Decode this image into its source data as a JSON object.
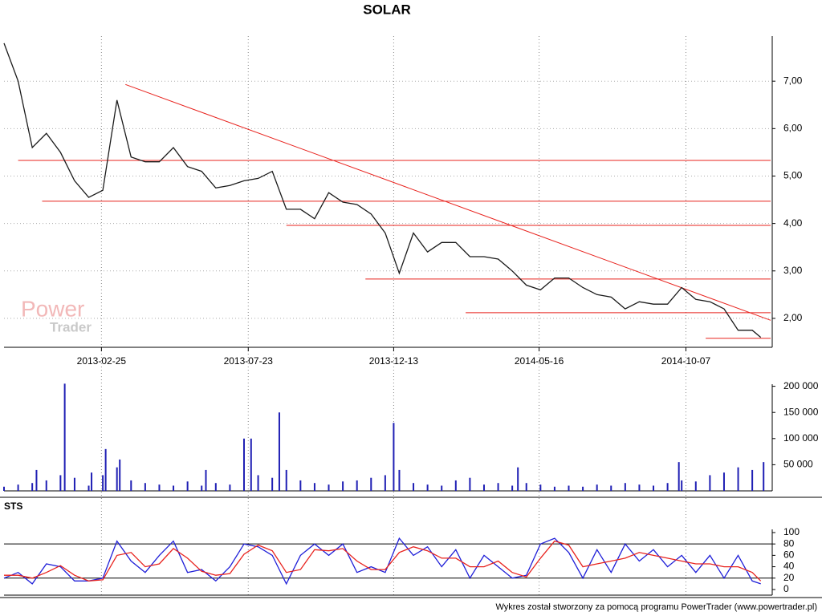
{
  "chart_data": [
    {
      "type": "line",
      "title": "SOLAR",
      "x": [
        0,
        10,
        20,
        30,
        40,
        50,
        60,
        70,
        80,
        90,
        100,
        110,
        120,
        130,
        140,
        150,
        160,
        170,
        180,
        190,
        200,
        210,
        220,
        230,
        240,
        250,
        260,
        270,
        280,
        290,
        300,
        310,
        320,
        330,
        340,
        350,
        360,
        370,
        380,
        390,
        400,
        410,
        420,
        430,
        440,
        450,
        460,
        470,
        480,
        490,
        500,
        510,
        520,
        530,
        536
      ],
      "series": [
        {
          "color": "#1a1a1a",
          "values": [
            7.8,
            7.0,
            5.6,
            5.9,
            5.5,
            4.9,
            4.55,
            4.7,
            6.6,
            5.4,
            5.3,
            5.3,
            5.6,
            5.2,
            5.1,
            4.75,
            4.8,
            4.9,
            4.95,
            5.1,
            4.3,
            4.3,
            4.1,
            4.65,
            4.45,
            4.4,
            4.2,
            3.8,
            2.95,
            3.8,
            3.4,
            3.6,
            3.6,
            3.3,
            3.3,
            3.25,
            3.0,
            2.7,
            2.6,
            2.85,
            2.85,
            2.65,
            2.5,
            2.45,
            2.2,
            2.35,
            2.3,
            2.3,
            2.65,
            2.4,
            2.35,
            2.2,
            1.75,
            1.75,
            1.6
          ]
        }
      ],
      "xlim": [
        0,
        543
      ],
      "xticks": [
        {
          "value": 69,
          "label": "2013-02-25"
        },
        {
          "value": 173,
          "label": "2013-07-23"
        },
        {
          "value": 276,
          "label": "2013-12-13"
        },
        {
          "value": 379,
          "label": "2014-05-16"
        },
        {
          "value": 483,
          "label": "2014-10-07"
        }
      ],
      "ylim": [
        1.39,
        7.95
      ],
      "yticks": [
        {
          "value": 2,
          "label": "2,00"
        },
        {
          "value": 3,
          "label": "3,00"
        },
        {
          "value": 4,
          "label": "4,00"
        },
        {
          "value": 5,
          "label": "5,00"
        },
        {
          "value": 6,
          "label": "6,00"
        },
        {
          "value": 7,
          "label": "7,00"
        }
      ],
      "hlines": [
        {
          "from": 10,
          "value": 5.33
        },
        {
          "from": 27,
          "value": 4.47
        },
        {
          "from": 200,
          "value": 3.96
        },
        {
          "from": 256,
          "value": 2.83
        },
        {
          "from": 327,
          "value": 2.12
        },
        {
          "from": 497,
          "value": 1.58
        }
      ],
      "trendline": {
        "x": [
          86,
          543
        ],
        "y": [
          6.93,
          1.96
        ]
      },
      "line_color": "#e8231e",
      "grid": true
    },
    {
      "type": "bar",
      "x": [
        0,
        10,
        20,
        23,
        30,
        40,
        43,
        50,
        60,
        62,
        70,
        72,
        80,
        82,
        90,
        100,
        110,
        120,
        130,
        140,
        143,
        150,
        160,
        170,
        175,
        180,
        190,
        195,
        200,
        210,
        220,
        230,
        240,
        250,
        260,
        270,
        276,
        280,
        290,
        300,
        310,
        320,
        330,
        340,
        350,
        360,
        364,
        370,
        380,
        390,
        400,
        410,
        420,
        430,
        440,
        450,
        460,
        470,
        478,
        480,
        490,
        500,
        510,
        520,
        530,
        538
      ],
      "values": [
        8000,
        12000,
        15000,
        40000,
        20000,
        30000,
        205000,
        25000,
        10000,
        35000,
        30000,
        80000,
        45000,
        60000,
        20000,
        15000,
        12000,
        10000,
        18000,
        10000,
        40000,
        15000,
        12000,
        100000,
        100000,
        30000,
        25000,
        150000,
        40000,
        20000,
        15000,
        12000,
        18000,
        20000,
        25000,
        30000,
        130000,
        40000,
        15000,
        12000,
        10000,
        20000,
        25000,
        12000,
        15000,
        10000,
        45000,
        15000,
        12000,
        8000,
        10000,
        8000,
        12000,
        10000,
        15000,
        12000,
        10000,
        15000,
        55000,
        20000,
        18000,
        30000,
        35000,
        45000,
        40000,
        55000
      ],
      "color": "#1f1fb4",
      "xlim": [
        0,
        543
      ],
      "ylim": [
        0,
        204000
      ],
      "yticks": [
        {
          "value": 50000,
          "label": "50 000"
        },
        {
          "value": 100000,
          "label": "100 000"
        },
        {
          "value": 150000,
          "label": "150 000"
        },
        {
          "value": 200000,
          "label": "200 000"
        }
      ]
    },
    {
      "type": "line",
      "title": "STS",
      "x": [
        0,
        10,
        20,
        30,
        40,
        50,
        60,
        70,
        80,
        90,
        100,
        110,
        120,
        130,
        140,
        150,
        160,
        170,
        180,
        190,
        200,
        210,
        220,
        230,
        240,
        250,
        260,
        270,
        280,
        290,
        300,
        310,
        320,
        330,
        340,
        350,
        360,
        370,
        380,
        390,
        400,
        410,
        420,
        430,
        440,
        450,
        460,
        470,
        480,
        490,
        500,
        510,
        520,
        530,
        536
      ],
      "series": [
        {
          "color": "#1f1fd8",
          "values": [
            20,
            30,
            10,
            45,
            40,
            15,
            15,
            20,
            85,
            50,
            30,
            60,
            85,
            30,
            35,
            15,
            40,
            80,
            75,
            60,
            10,
            60,
            80,
            60,
            80,
            30,
            40,
            30,
            90,
            60,
            75,
            40,
            70,
            20,
            60,
            40,
            20,
            25,
            80,
            90,
            65,
            20,
            70,
            30,
            80,
            50,
            70,
            40,
            60,
            30,
            60,
            20,
            60,
            15,
            10
          ]
        },
        {
          "color": "#e8231e",
          "values": [
            25,
            25,
            20,
            30,
            42,
            25,
            15,
            17,
            60,
            65,
            40,
            45,
            72,
            55,
            32,
            25,
            28,
            62,
            78,
            68,
            30,
            35,
            70,
            68,
            72,
            50,
            35,
            35,
            65,
            75,
            68,
            55,
            55,
            40,
            40,
            50,
            30,
            22,
            55,
            85,
            78,
            40,
            45,
            50,
            55,
            65,
            60,
            55,
            50,
            45,
            45,
            40,
            40,
            30,
            15
          ]
        }
      ],
      "xlim": [
        0,
        543
      ],
      "ylim": [
        -9.9,
        105.6
      ],
      "yticks": [
        0,
        20,
        40,
        60,
        80,
        100
      ],
      "levels": [
        20,
        80
      ]
    }
  ],
  "watermark": {
    "line1": "Power",
    "line2": "Trader"
  },
  "footer": "Wykres został stworzony za pomocą programu PowerTrader (www.powertrader.pl)"
}
